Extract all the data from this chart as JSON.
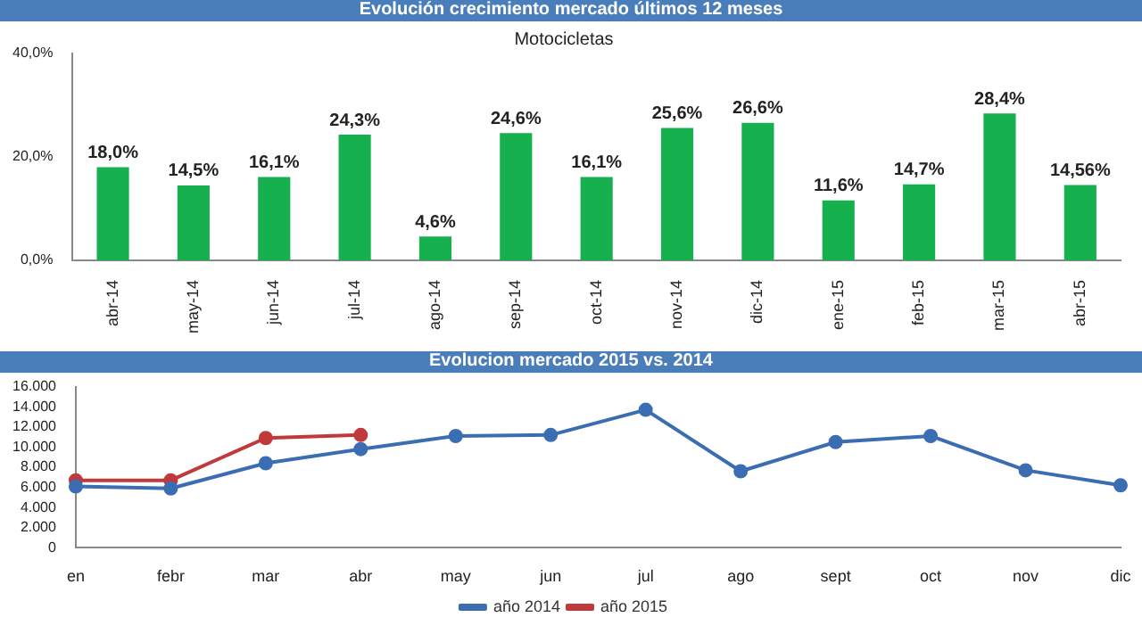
{
  "chart_data": [
    {
      "type": "bar",
      "title": "Evolución crecimiento mercado últimos 12 meses",
      "subtitle": "Motocicletas",
      "categories": [
        "abr-14",
        "may-14",
        "jun-14",
        "jul-14",
        "ago-14",
        "sep-14",
        "oct-14",
        "nov-14",
        "dic-14",
        "ene-15",
        "feb-15",
        "mar-15",
        "abr-15"
      ],
      "values": [
        18.0,
        14.5,
        16.1,
        24.3,
        4.6,
        24.6,
        16.1,
        25.6,
        26.6,
        11.6,
        14.7,
        28.4,
        14.56
      ],
      "value_labels": [
        "18,0%",
        "14,5%",
        "16,1%",
        "24,3%",
        "4,6%",
        "24,6%",
        "16,1%",
        "25,6%",
        "26,6%",
        "11,6%",
        "14,7%",
        "28,4%",
        "14,56%"
      ],
      "color": "#16b04f",
      "ylim": [
        0,
        40
      ],
      "yticks": [
        {
          "value": 0,
          "label": "0,0%"
        },
        {
          "value": 20,
          "label": "20,0%"
        },
        {
          "value": 40,
          "label": "40,0%"
        }
      ],
      "grid": false,
      "legend": false
    },
    {
      "type": "line",
      "title": "Evolucion mercado 2015 vs. 2014",
      "categories": [
        "en",
        "febr",
        "mar",
        "abr",
        "may",
        "jun",
        "jul",
        "ago",
        "sept",
        "oct",
        "nov",
        "dic"
      ],
      "series": [
        {
          "name": "año 2014",
          "color": "#3b6db3",
          "values": [
            6100,
            5900,
            8400,
            9800,
            11100,
            11200,
            13700,
            7600,
            10500,
            11100,
            7700,
            6200
          ]
        },
        {
          "name": "año 2015",
          "color": "#c0393b",
          "values": [
            6700,
            6700,
            10900,
            11200,
            null,
            null,
            null,
            null,
            null,
            null,
            null,
            null
          ]
        }
      ],
      "ylim": [
        0,
        16000
      ],
      "yticks": [
        {
          "value": 0,
          "label": "0"
        },
        {
          "value": 2000,
          "label": "2.000"
        },
        {
          "value": 4000,
          "label": "4.000"
        },
        {
          "value": 6000,
          "label": "6.000"
        },
        {
          "value": 8000,
          "label": "8.000"
        },
        {
          "value": 10000,
          "label": "10.000"
        },
        {
          "value": 12000,
          "label": "12.000"
        },
        {
          "value": 14000,
          "label": "14.000"
        },
        {
          "value": 16000,
          "label": "16.000"
        }
      ],
      "grid": false,
      "legend": "bottom",
      "marker": "circle",
      "line_style": "solid"
    }
  ]
}
